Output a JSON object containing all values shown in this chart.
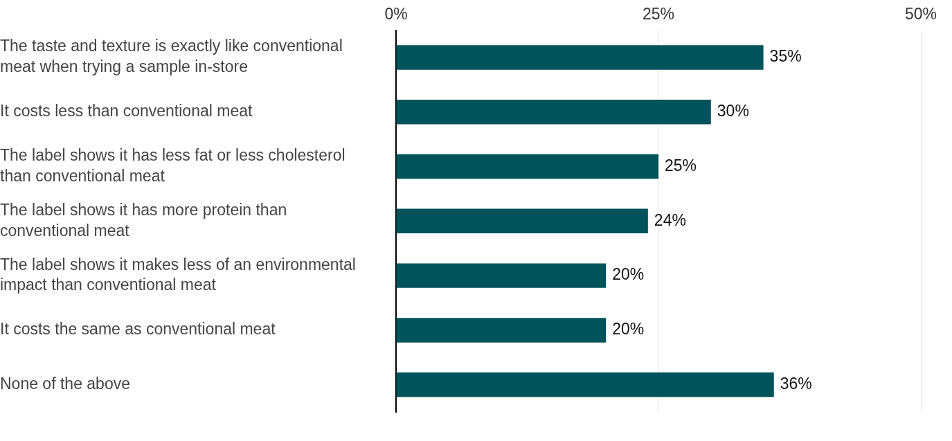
{
  "chart_data": {
    "type": "bar",
    "orientation": "horizontal",
    "categories": [
      "The taste and texture is exactly like conventional meat when trying a sample in-store",
      "It costs less than conventional meat",
      "The label shows it has less fat or less cholesterol than conventional meat",
      "The label shows it has more protein than conventional meat",
      "The label shows it makes less of an environmental impact than conventional meat",
      "It costs the same as conventional meat",
      "None of the above"
    ],
    "values": [
      35,
      30,
      25,
      24,
      20,
      20,
      36
    ],
    "value_labels": [
      "35%",
      "30%",
      "25%",
      "24%",
      "20%",
      "20%",
      "36%"
    ],
    "color": "#00535b",
    "xlim": [
      0,
      50
    ],
    "xticks": [
      {
        "value": 0,
        "label": "0%"
      },
      {
        "value": 25,
        "label": "25%"
      },
      {
        "value": 50,
        "label": "50%"
      }
    ],
    "grid": "x",
    "legend": false
  }
}
